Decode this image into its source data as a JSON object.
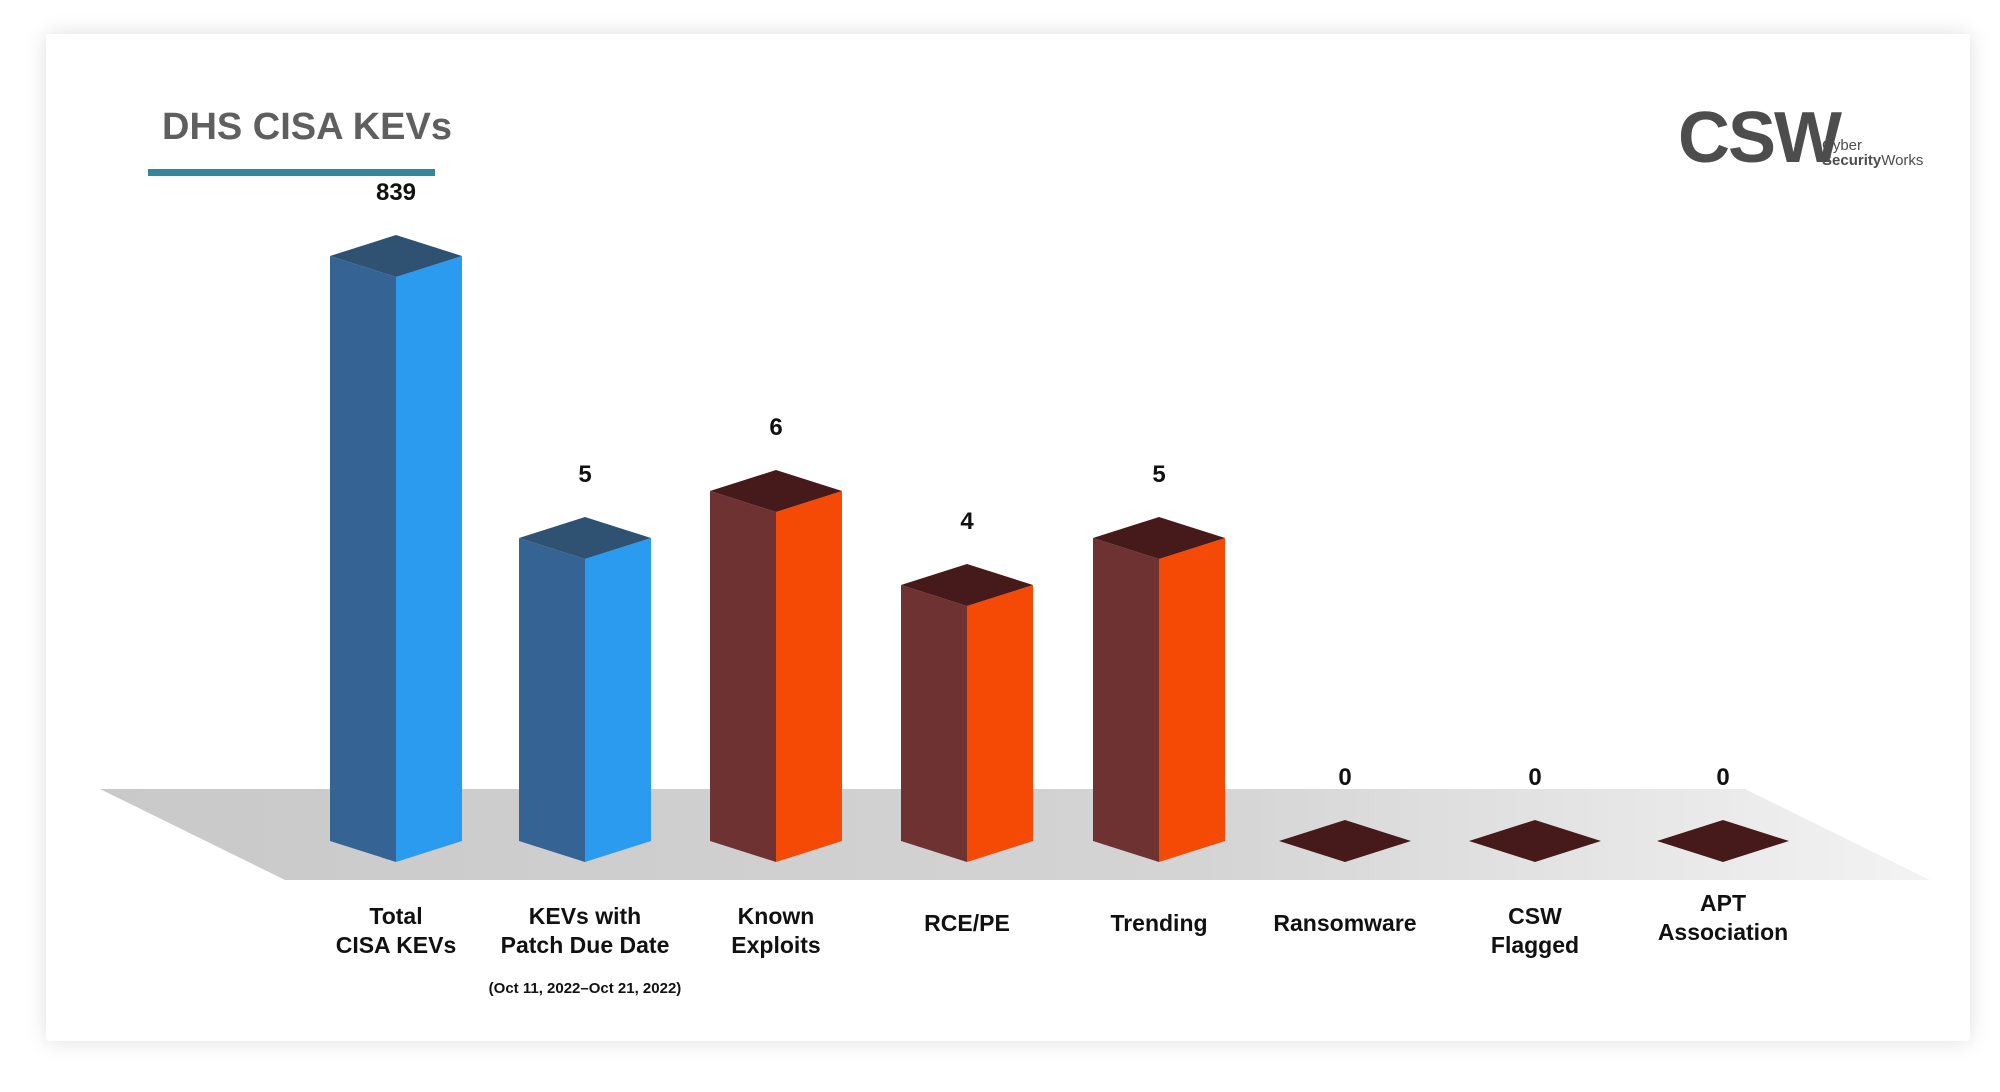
{
  "title": "DHS CISA KEVs",
  "logo": {
    "mark": "CSW",
    "line1": "Cyber",
    "line2_bold": "Security",
    "line2_rest": "Works"
  },
  "colors": {
    "title_underline": "#34879a",
    "blue_front": "#2a9bef",
    "blue_side": "#356394",
    "blue_top": "#2f5272",
    "orange_front": "#f54a05",
    "brown_side": "#6f3232",
    "brown_top": "#461a1a",
    "floor": "#cccccc"
  },
  "chart_data": {
    "type": "bar",
    "categories": [
      "Total CISA KEVs",
      "KEVs with Patch Due Date",
      "Known Exploits",
      "RCE/PE",
      "Trending",
      "Ransomware",
      "CSW Flagged",
      "APT Association"
    ],
    "category_lines": [
      [
        "Total",
        "CISA KEVs"
      ],
      [
        "KEVs with",
        "Patch Due Date"
      ],
      [
        "Known",
        "Exploits"
      ],
      [
        "RCE/PE"
      ],
      [
        "Trending"
      ],
      [
        "Ransomware"
      ],
      [
        "CSW",
        "Flagged"
      ],
      [
        "APT",
        "Association"
      ]
    ],
    "category_notes": [
      "",
      "(Oct 11, 2022–Oct 21, 2022)",
      "",
      "",
      "",
      "",
      "",
      ""
    ],
    "values": [
      839,
      5,
      6,
      4,
      5,
      0,
      0,
      0
    ],
    "value_labels": [
      "839",
      "5",
      "6",
      "4",
      "5",
      "0",
      "0",
      "0"
    ],
    "color_groups": [
      "blue",
      "blue",
      "orange",
      "orange",
      "orange",
      "orange",
      "orange",
      "orange"
    ],
    "title": "DHS CISA KEVs",
    "note": "3D columns on a grey floor; axis not to scale"
  }
}
